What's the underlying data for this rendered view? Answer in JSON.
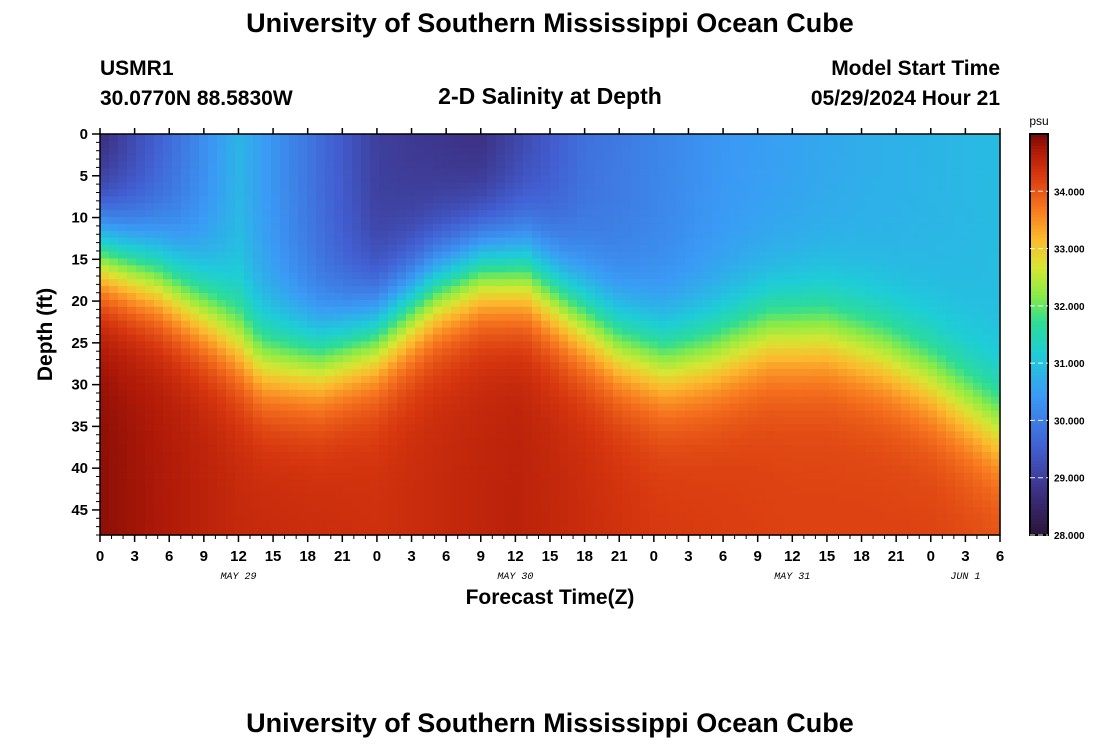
{
  "header": {
    "title": "University of Southern Mississippi Ocean Cube",
    "station_id": "USMR1",
    "coords": "30.0770N  88.5830W",
    "plot_title": "2-D Salinity at Depth",
    "model_start_label": "Model Start Time",
    "model_start_value": "05/29/2024 Hour 21"
  },
  "footer": {
    "title": "University of Southern Mississippi Ocean Cube"
  },
  "chart_data": {
    "type": "heatmap",
    "title": "2-D Salinity at Depth",
    "xlabel": "Forecast Time(Z)",
    "ylabel": "Depth (ft)",
    "x_range_hours": [
      0,
      78
    ],
    "x_tick_labels": [
      "0",
      "3",
      "6",
      "9",
      "12",
      "15",
      "18",
      "21",
      "0",
      "3",
      "6",
      "9",
      "12",
      "15",
      "18",
      "21",
      "0",
      "3",
      "6",
      "9",
      "12",
      "15",
      "18",
      "21",
      "0",
      "3",
      "6"
    ],
    "date_labels": [
      {
        "label": "MAY 29",
        "hour": 12
      },
      {
        "label": "MAY 30",
        "hour": 36
      },
      {
        "label": "MAY 31",
        "hour": 60
      },
      {
        "label": "JUN 1",
        "hour": 75
      }
    ],
    "ylim": [
      0,
      48
    ],
    "y_tick_labels": [
      "0",
      "5",
      "10",
      "15",
      "20",
      "25",
      "30",
      "35",
      "40",
      "45"
    ],
    "colorbar": {
      "unit": "psu",
      "range": [
        28.0,
        35.0
      ],
      "tick_labels": [
        "28.000",
        "29.000",
        "30.000",
        "31.000",
        "32.000",
        "33.000",
        "34.000"
      ],
      "colormap": "turbo"
    },
    "surface_salinity": {
      "hours": [
        0,
        12,
        24,
        33,
        42,
        54,
        66,
        78
      ],
      "values": [
        28.6,
        30.8,
        29.0,
        28.7,
        29.8,
        30.4,
        30.7,
        30.9
      ]
    },
    "bottom_salinity": {
      "hours": [
        0,
        12,
        24,
        36,
        48,
        60,
        72,
        78
      ],
      "values": [
        34.9,
        34.5,
        34.4,
        34.6,
        34.3,
        34.2,
        34.2,
        34.1
      ]
    },
    "halocline_depth_ft": {
      "hours": [
        0,
        5,
        10,
        14,
        19,
        24,
        29,
        33,
        37,
        41,
        45,
        49,
        53,
        58,
        63,
        68,
        72,
        75,
        78
      ],
      "values": [
        14,
        17,
        22,
        27,
        27,
        24,
        18.5,
        16,
        16.5,
        21,
        25,
        27,
        26,
        23.5,
        23.5,
        26,
        29,
        32,
        35
      ]
    }
  }
}
